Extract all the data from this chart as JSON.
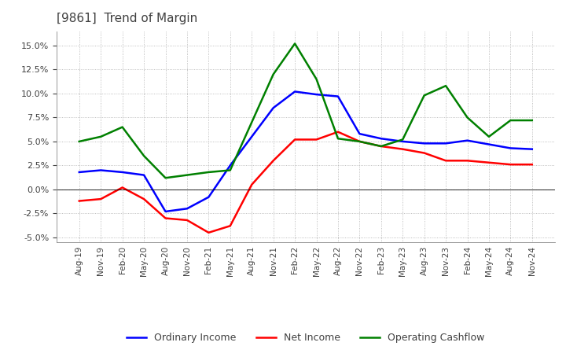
{
  "title": "[9861]  Trend of Margin",
  "x_labels": [
    "Aug-19",
    "Nov-19",
    "Feb-20",
    "May-20",
    "Aug-20",
    "Nov-20",
    "Feb-21",
    "May-21",
    "Aug-21",
    "Nov-21",
    "Feb-22",
    "May-22",
    "Aug-22",
    "Nov-22",
    "Feb-23",
    "May-23",
    "Aug-23",
    "Nov-23",
    "Feb-24",
    "May-24",
    "Aug-24",
    "Nov-24"
  ],
  "ordinary_income": [
    1.8,
    2.0,
    1.8,
    1.5,
    -2.3,
    -2.0,
    -0.8,
    2.5,
    5.5,
    8.5,
    10.2,
    9.9,
    9.7,
    5.8,
    5.3,
    5.0,
    4.8,
    4.8,
    5.1,
    4.7,
    4.3,
    4.2
  ],
  "net_income": [
    -1.2,
    -1.0,
    0.2,
    -1.0,
    -3.0,
    -3.2,
    -4.5,
    -3.8,
    0.5,
    3.0,
    5.2,
    5.2,
    6.0,
    5.0,
    4.5,
    4.2,
    3.8,
    3.0,
    3.0,
    2.8,
    2.6,
    2.6
  ],
  "operating_cashflow": [
    5.0,
    5.5,
    6.5,
    3.5,
    1.2,
    1.5,
    1.8,
    2.0,
    7.0,
    12.0,
    15.2,
    11.5,
    5.3,
    5.0,
    4.5,
    5.2,
    9.8,
    10.8,
    7.5,
    5.5,
    7.2,
    7.2
  ],
  "ylim": [
    -5.5,
    16.5
  ],
  "yticks": [
    -5.0,
    -2.5,
    0.0,
    2.5,
    5.0,
    7.5,
    10.0,
    12.5,
    15.0
  ],
  "line_colors": {
    "ordinary_income": "#0000FF",
    "net_income": "#FF0000",
    "operating_cashflow": "#008000"
  },
  "line_width": 1.8,
  "background_color": "#FFFFFF",
  "plot_bg_color": "#FFFFFF",
  "grid_color": "#999999",
  "title_color": "#404040",
  "legend": [
    "Ordinary Income",
    "Net Income",
    "Operating Cashflow"
  ]
}
